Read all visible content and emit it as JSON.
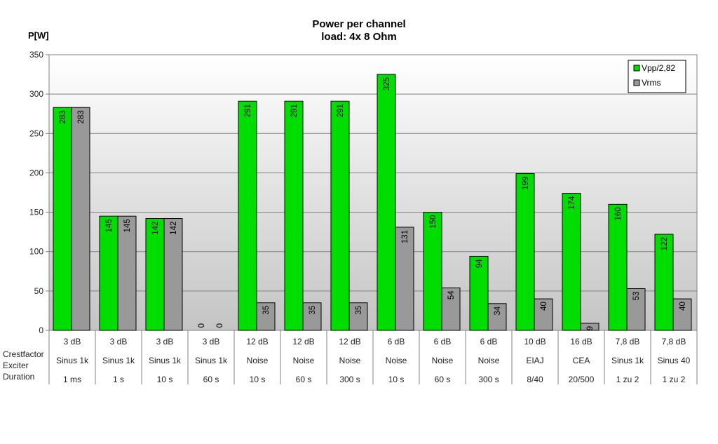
{
  "chart_data": {
    "type": "bar",
    "title": "Power per channel",
    "subtitle": "load:  4x 8 Ohm",
    "ylabel": "P[W]",
    "ylim": [
      0,
      350
    ],
    "yticks": [
      0,
      50,
      100,
      150,
      200,
      250,
      300,
      350
    ],
    "grid": true,
    "legend_position": "top-right",
    "row_labels": [
      "Crestfactor",
      "Exciter",
      "Duration"
    ],
    "crestfactor": [
      "3 dB",
      "3 dB",
      "3 dB",
      "3 dB",
      "12 dB",
      "12 dB",
      "12 dB",
      "6 dB",
      "6 dB",
      "6 dB",
      "10 dB",
      "16 dB",
      "7,8 dB",
      "7,8 dB"
    ],
    "exciter": [
      "Sinus 1k",
      "Sinus 1k",
      "Sinus 1k",
      "Sinus 1k",
      "Noise",
      "Noise",
      "Noise",
      "Noise",
      "Noise",
      "Noise",
      "EIAJ",
      "CEA",
      "Sinus 1k",
      "Sinus 40"
    ],
    "duration": [
      "1 ms",
      "1 s",
      "10 s",
      "60 s",
      "10 s",
      "60 s",
      "300 s",
      "10 s",
      "60 s",
      "300 s",
      "8/40",
      "20/500",
      "1 zu 2",
      "1 zu 2"
    ],
    "series": [
      {
        "name": "Vpp/2,82",
        "color": "#00dd00",
        "values": [
          283,
          145,
          142,
          0,
          291,
          291,
          291,
          325,
          150,
          94,
          199,
          174,
          160,
          122
        ]
      },
      {
        "name": "Vrms",
        "color": "#999999",
        "values": [
          283,
          145,
          142,
          0,
          35,
          35,
          35,
          131,
          54,
          34,
          40,
          9,
          53,
          40
        ]
      }
    ]
  }
}
